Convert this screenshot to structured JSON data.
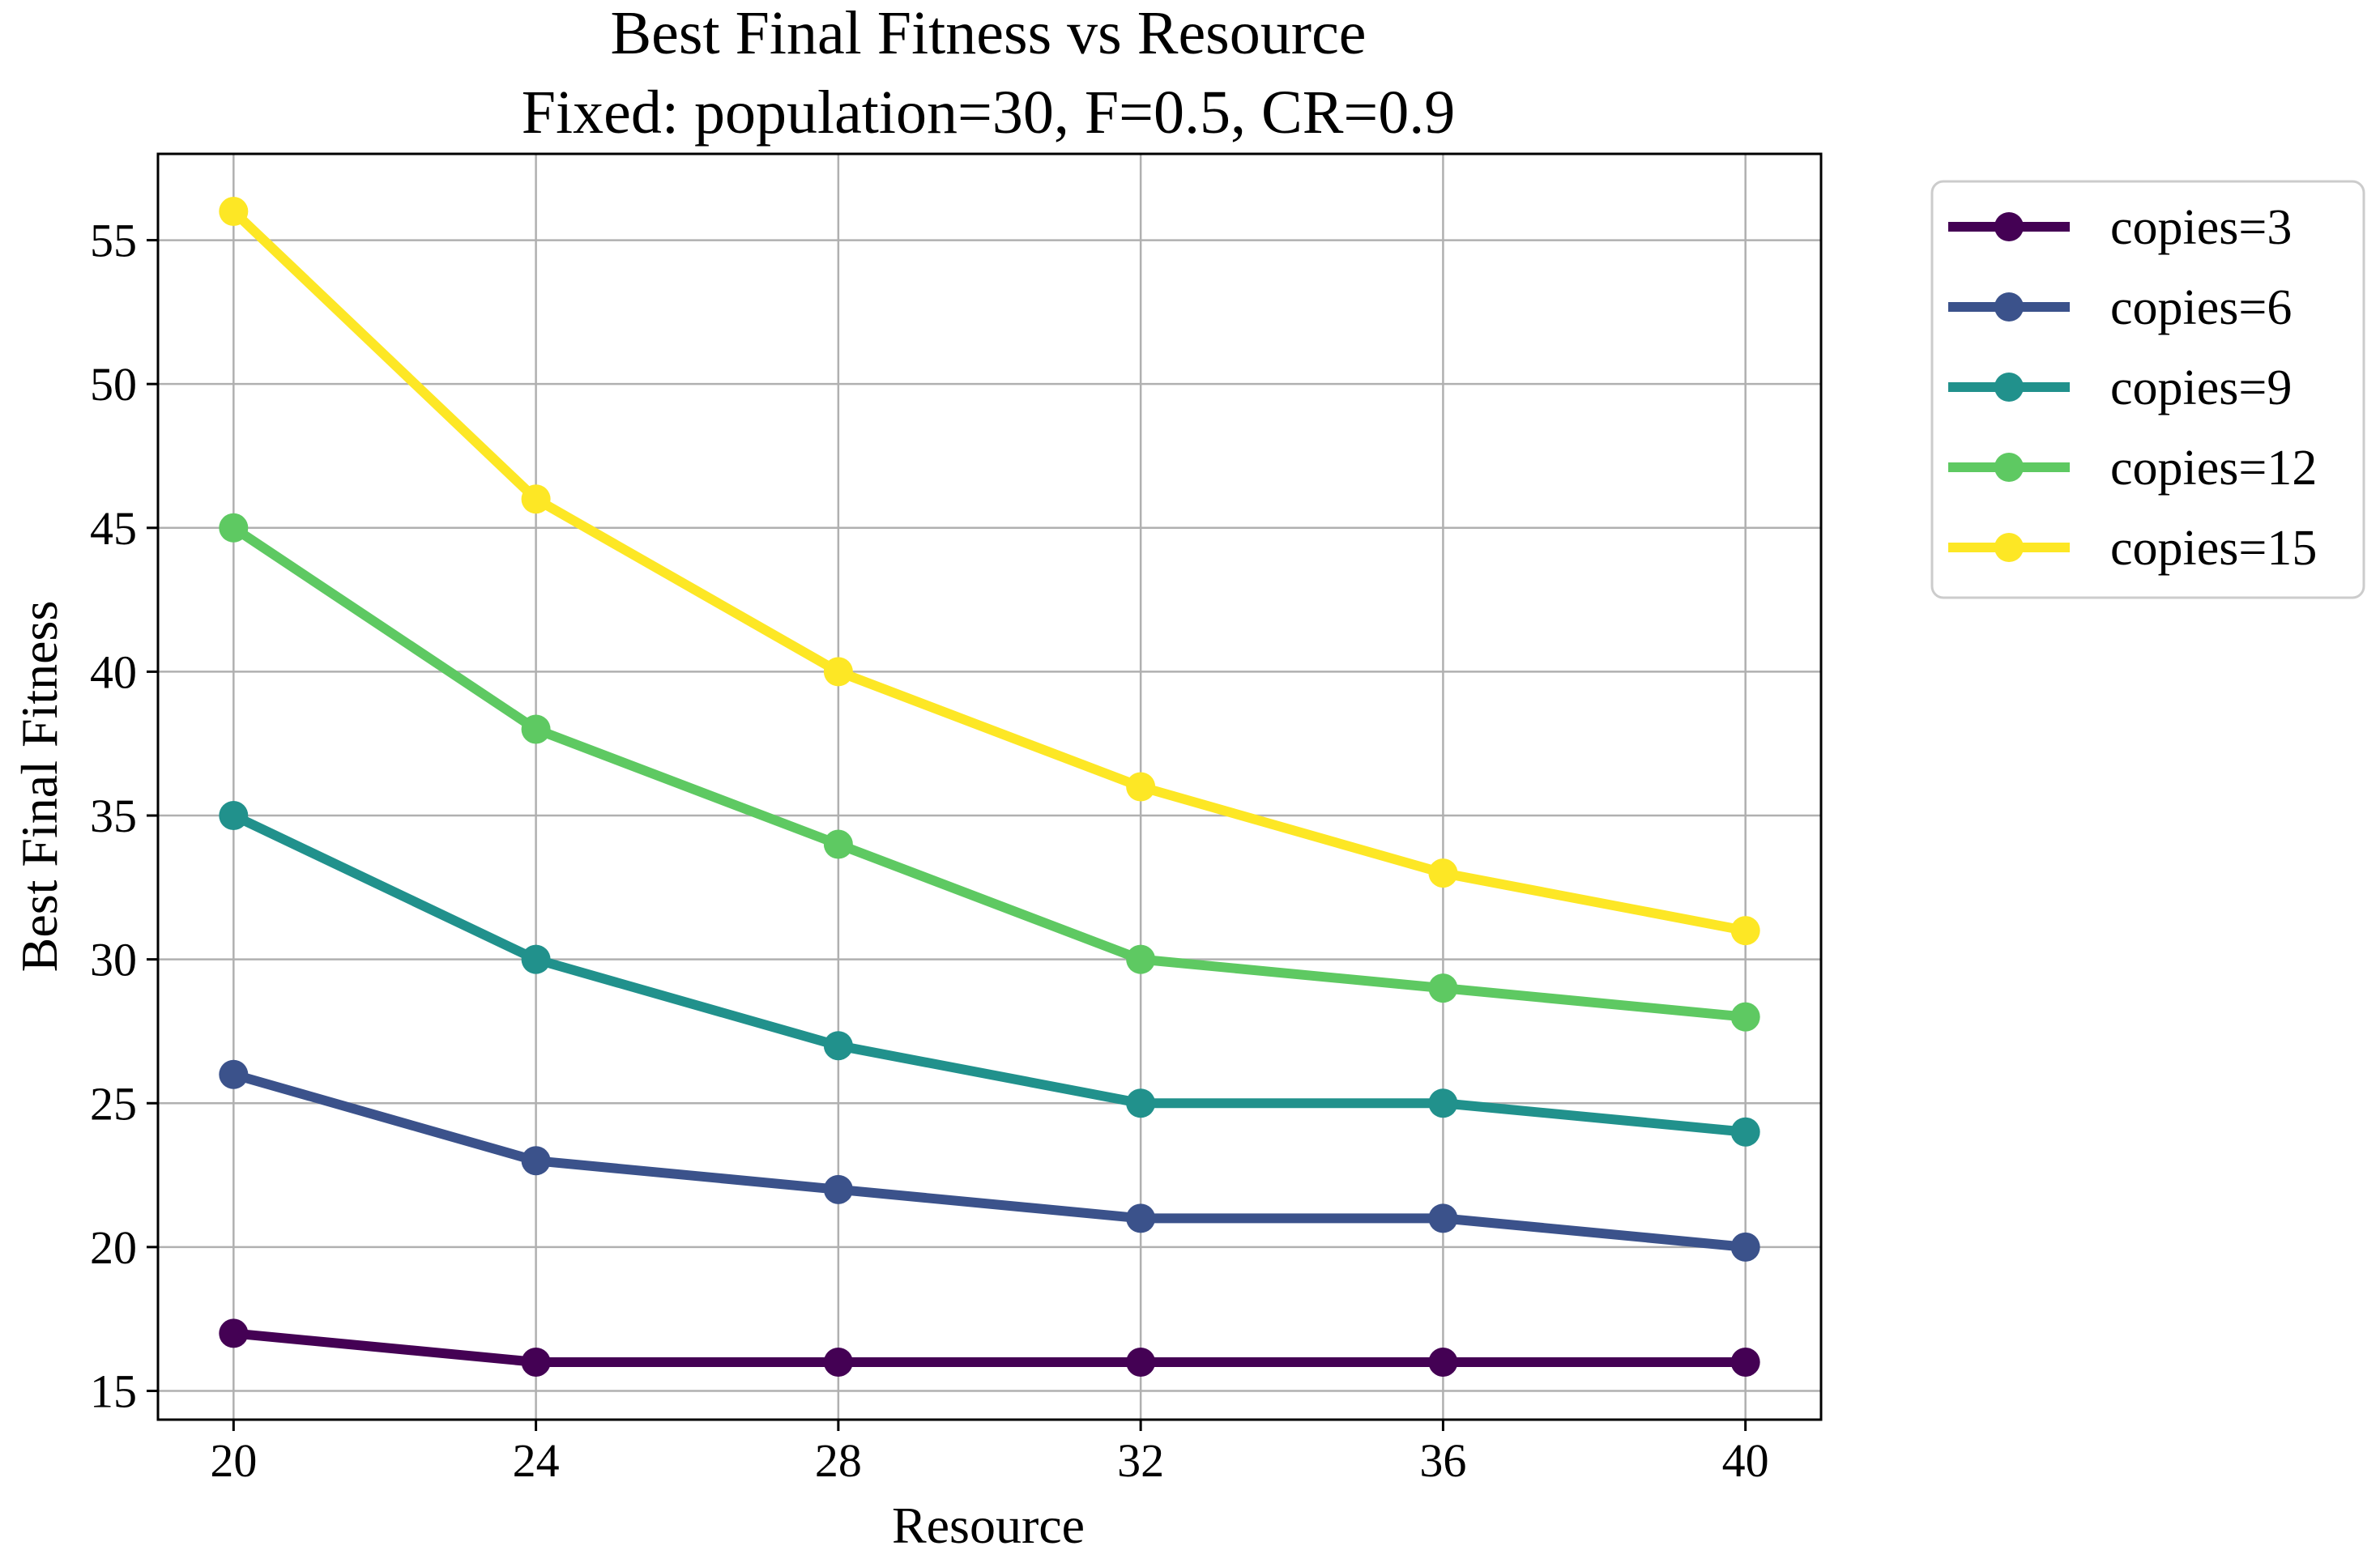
{
  "chart_data": {
    "type": "line",
    "title": "Best Final Fitness vs Resource",
    "subtitle": "Fixed: population=30, F=0.5, CR=0.9",
    "xlabel": "Resource",
    "ylabel": "Best Final Fitness",
    "x": [
      20,
      24,
      28,
      32,
      36,
      40
    ],
    "xticks": [
      20,
      24,
      28,
      32,
      36,
      40
    ],
    "xlim": [
      19,
      41
    ],
    "yticks": [
      15,
      20,
      25,
      30,
      35,
      40,
      45,
      50,
      55
    ],
    "ylim": [
      14,
      58
    ],
    "grid": true,
    "legend": "outside-upper-right",
    "series": [
      {
        "name": "copies=3",
        "color": "#440154",
        "values": [
          17,
          16,
          16,
          16,
          16,
          16
        ]
      },
      {
        "name": "copies=6",
        "color": "#3b528b",
        "values": [
          26,
          23,
          22,
          21,
          21,
          20
        ]
      },
      {
        "name": "copies=9",
        "color": "#21918c",
        "values": [
          35,
          30,
          27,
          25,
          25,
          24
        ]
      },
      {
        "name": "copies=12",
        "color": "#5ec962",
        "values": [
          45,
          38,
          34,
          30,
          29,
          28
        ]
      },
      {
        "name": "copies=15",
        "color": "#fde725",
        "values": [
          56,
          46,
          40,
          36,
          33,
          31
        ]
      }
    ]
  }
}
